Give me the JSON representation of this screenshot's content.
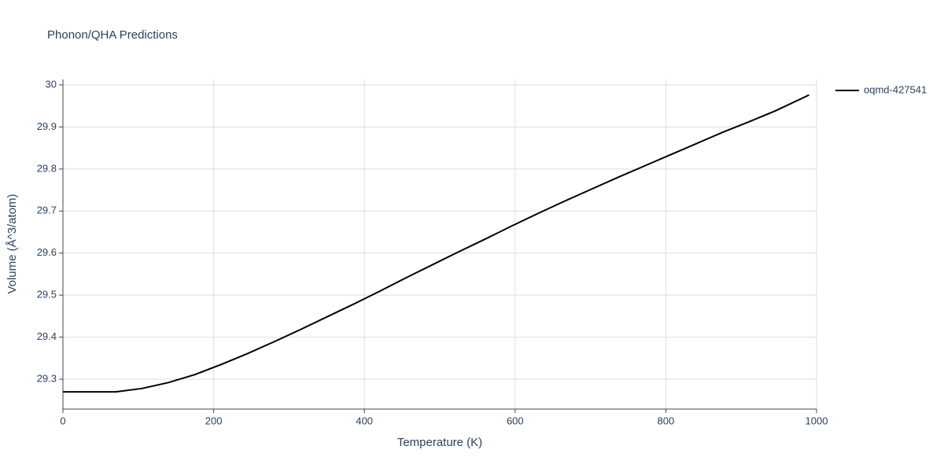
{
  "chart_data": {
    "type": "line",
    "title": "Phonon/QHA Predictions",
    "x_label": "Temperature (K)",
    "y_label": "Volume (Å^3/atom)",
    "x": [
      0,
      35,
      70,
      105,
      140,
      175,
      210,
      245,
      280,
      315,
      350,
      385,
      420,
      455,
      490,
      525,
      560,
      595,
      630,
      665,
      700,
      735,
      770,
      805,
      840,
      875,
      910,
      945,
      990
    ],
    "series": [
      {
        "name": "oqmd-427541",
        "color": "#000000",
        "values": [
          29.27,
          29.27,
          29.27,
          29.278,
          29.292,
          29.311,
          29.335,
          29.361,
          29.389,
          29.418,
          29.448,
          29.478,
          29.509,
          29.541,
          29.572,
          29.603,
          29.633,
          29.664,
          29.694,
          29.723,
          29.751,
          29.779,
          29.806,
          29.833,
          29.86,
          29.887,
          29.912,
          29.938,
          29.976
        ]
      }
    ],
    "xlim": [
      0,
      1000
    ],
    "xticks": [
      0,
      200,
      400,
      600,
      800,
      1000
    ],
    "ylim": [
      29.229,
      30.013
    ],
    "yticks": [
      29.3,
      29.4,
      29.5,
      29.6,
      29.7,
      29.8,
      29.9,
      30
    ],
    "grid": true,
    "legend": "right"
  }
}
